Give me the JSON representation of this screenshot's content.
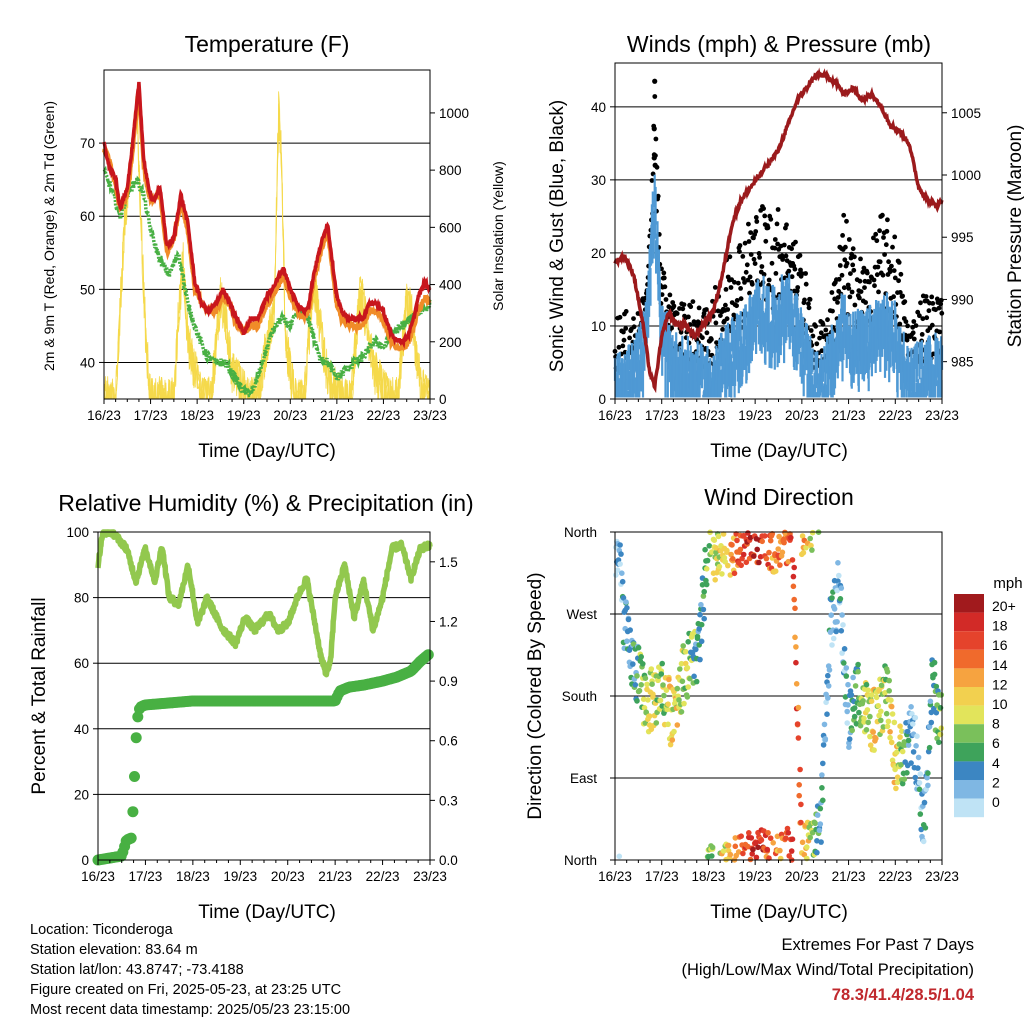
{
  "panels": {
    "temperature": {
      "title": "Temperature (F)",
      "ylabel": "2m & 9m T (Red, Orange) & 2m Td (Green)",
      "y2label": "Solar Insolation (Yellow)",
      "xlabel": "Time (Day/UTC)"
    },
    "winds": {
      "title": "Winds (mph) & Pressure (mb)",
      "ylabel": "Sonic Wind & Gust (Blue, Black)",
      "y2label": "Station Pressure (Maroon)",
      "xlabel": "Time (Day/UTC)"
    },
    "humidity": {
      "title": "Relative Humidity (%) & Precipitation (in)",
      "ylabel": "Percent & Total Rainfall",
      "xlabel": "Time (Day/UTC)"
    },
    "direction": {
      "title": "Wind Direction",
      "ylabel": "Direction (Colored By Speed)",
      "xlabel": "Time (Day/UTC)",
      "legend_title": "mph",
      "legend_labels": [
        "20+",
        "18",
        "16",
        "14",
        "12",
        "10",
        "8",
        "6",
        "4",
        "2",
        "0"
      ],
      "legend_colors": [
        "#a11a1d",
        "#d22a27",
        "#e5432c",
        "#f06a2c",
        "#f6a340",
        "#f2d04f",
        "#e2e45b",
        "#7ac05b",
        "#3ea35b",
        "#3c86c2",
        "#7fb7e3",
        "#bfe3f5"
      ]
    }
  },
  "info": {
    "location": "Location: Ticonderoga",
    "elevation": "Station elevation: 83.64 m",
    "latlon": "Station lat/lon: 43.8747; -73.4188",
    "created": "Figure created on Fri, 2025-05-23, at 23:25 UTC",
    "recent": "Most recent data timestamp: 2025/05/23 23:15:00"
  },
  "extremes": {
    "line1": "Extremes For Past 7 Days",
    "line2": "(High/Low/Max Wind/Total Precipitation)",
    "values": "78.3/41.4/28.5/1.04"
  },
  "colors": {
    "temp2m": "#c8161d",
    "temp9m": "#f08c28",
    "dewpoint": "#48b043",
    "solar": "#f5d94b",
    "wind": "#4f99d4",
    "gust": "#000000",
    "pressure": "#9b1a1c",
    "rh": "#92c84e",
    "precip": "#48b043"
  },
  "chart_data": [
    {
      "type": "line",
      "title": "Temperature (F)",
      "x_ticks": [
        "16/23",
        "17/23",
        "18/23",
        "19/23",
        "20/23",
        "21/23",
        "22/23",
        "23/23"
      ],
      "ylim": [
        35,
        80
      ],
      "y_ticks": [
        40,
        50,
        60,
        70
      ],
      "y2lim": [
        0,
        1150
      ],
      "y2_ticks": [
        0,
        200,
        400,
        600,
        800,
        1000
      ],
      "x_range": [
        0,
        7
      ],
      "series": [
        {
          "name": "2m T (Red)",
          "x": [
            0,
            0.1,
            0.25,
            0.35,
            0.5,
            0.6,
            0.75,
            0.85,
            0.95,
            1.05,
            1.2,
            1.35,
            1.5,
            1.65,
            1.8,
            1.95,
            2.1,
            2.25,
            2.4,
            2.55,
            2.7,
            2.85,
            3.0,
            3.15,
            3.3,
            3.5,
            3.7,
            3.85,
            4.0,
            4.15,
            4.3,
            4.4,
            4.5,
            4.65,
            4.8,
            4.9,
            5.0,
            5.1,
            5.25,
            5.4,
            5.55,
            5.7,
            5.85,
            6.0,
            6.15,
            6.3,
            6.45,
            6.55,
            6.65,
            6.75,
            6.9,
            7.0
          ],
          "values": [
            70,
            67,
            65,
            61,
            64,
            69,
            78.3,
            68,
            64,
            62,
            64,
            56,
            57,
            63,
            59,
            51,
            48,
            47,
            48,
            50,
            48,
            46,
            44,
            46,
            46,
            49,
            51,
            53,
            50,
            48,
            47,
            48,
            52,
            56,
            59,
            54,
            49,
            47,
            46,
            46,
            46,
            48,
            48,
            47,
            44,
            43,
            43,
            44,
            46,
            49,
            51,
            50
          ]
        },
        {
          "name": "9m T (Orange)",
          "x": [
            0,
            0.1,
            0.25,
            0.35,
            0.5,
            0.6,
            0.75,
            0.85,
            0.95,
            1.05,
            1.2,
            1.35,
            1.5,
            1.65,
            1.8,
            1.95,
            2.1,
            2.25,
            2.4,
            2.55,
            2.7,
            2.85,
            3.0,
            3.15,
            3.3,
            3.5,
            3.7,
            3.85,
            4.0,
            4.15,
            4.3,
            4.4,
            4.5,
            4.65,
            4.8,
            4.9,
            5.0,
            5.1,
            5.25,
            5.4,
            5.55,
            5.7,
            5.85,
            6.0,
            6.15,
            6.3,
            6.45,
            6.55,
            6.65,
            6.75,
            6.9,
            7.0
          ],
          "values": [
            69,
            68,
            64,
            61,
            63,
            68,
            77,
            67,
            63,
            62,
            63,
            55,
            57,
            62,
            58,
            50,
            48,
            47,
            47,
            49,
            48,
            45,
            44,
            45,
            45,
            48,
            50,
            52,
            49,
            47,
            46,
            47,
            51,
            55,
            58,
            53,
            48,
            46,
            45,
            45,
            45,
            47,
            47,
            46,
            43,
            42,
            42,
            43,
            45,
            47,
            49,
            48
          ]
        },
        {
          "name": "2m Td (Green)",
          "x": [
            0,
            0.15,
            0.35,
            0.5,
            0.7,
            0.85,
            1.0,
            1.2,
            1.4,
            1.6,
            1.8,
            2.0,
            2.2,
            2.4,
            2.6,
            2.8,
            3.0,
            3.2,
            3.4,
            3.6,
            3.8,
            4.0,
            4.2,
            4.4,
            4.6,
            4.8,
            5.0,
            5.2,
            5.4,
            5.6,
            5.8,
            6.0,
            6.2,
            6.4,
            6.6,
            6.8,
            7.0
          ],
          "values": [
            66,
            64,
            60,
            63,
            65,
            63,
            58,
            54,
            52,
            55,
            48,
            44,
            41,
            40,
            40,
            38,
            36,
            36,
            40,
            44,
            46,
            45,
            47,
            46,
            41,
            40,
            38,
            39,
            40,
            41,
            43,
            42,
            44,
            45,
            46,
            47,
            48
          ]
        },
        {
          "name": "Solar Insolation (Yellow)",
          "x": [
            0,
            0.25,
            0.3,
            0.45,
            0.5,
            0.55,
            0.6,
            0.7,
            0.8,
            0.9,
            1.0,
            1.05,
            1.1,
            1.15,
            1.25,
            1.5,
            1.6,
            1.7,
            1.8,
            2.1,
            2.3,
            2.5,
            2.6,
            2.75,
            3.1,
            3.3,
            3.5,
            3.65,
            3.75,
            3.8,
            3.9,
            4.1,
            4.3,
            4.5,
            4.6,
            4.8,
            5.1,
            5.3,
            5.5,
            5.6,
            5.8,
            6.1,
            6.3,
            6.5,
            6.6,
            6.8,
            7.0
          ],
          "values": [
            0,
            0,
            150,
            650,
            700,
            800,
            850,
            1050,
            600,
            200,
            0,
            0,
            0,
            0,
            0,
            0,
            300,
            480,
            200,
            0,
            0,
            350,
            300,
            100,
            0,
            0,
            200,
            300,
            1000,
            900,
            200,
            0,
            0,
            420,
            300,
            80,
            0,
            0,
            380,
            300,
            100,
            0,
            0,
            340,
            300,
            40,
            0
          ]
        }
      ]
    },
    {
      "type": "scatter",
      "title": "Winds (mph) & Pressure (mb)",
      "x_ticks": [
        "16/23",
        "17/23",
        "18/23",
        "19/23",
        "20/23",
        "21/23",
        "22/23",
        "23/23"
      ],
      "ylim": [
        0,
        46
      ],
      "y_ticks": [
        0,
        10,
        20,
        30,
        40
      ],
      "y2lim": [
        982,
        1009
      ],
      "y2_ticks": [
        985,
        990,
        995,
        1000,
        1005
      ],
      "x_range": [
        0,
        7
      ],
      "series": [
        {
          "name": "Station Pressure (Maroon)",
          "x": [
            0,
            0.2,
            0.4,
            0.6,
            0.75,
            0.85,
            1.0,
            1.15,
            1.3,
            1.5,
            1.7,
            1.9,
            2.1,
            2.3,
            2.5,
            2.7,
            2.9,
            3.1,
            3.3,
            3.5,
            3.7,
            3.9,
            4.1,
            4.3,
            4.5,
            4.7,
            4.9,
            5.1,
            5.3,
            5.5,
            5.7,
            5.9,
            6.1,
            6.3,
            6.5,
            6.7,
            6.9,
            7.0
          ],
          "values": [
            993,
            993.5,
            992,
            988,
            984,
            983,
            987,
            989,
            988,
            988,
            987,
            988,
            989,
            992,
            996,
            998,
            999,
            1000,
            1001,
            1002,
            1004,
            1006,
            1007,
            1008,
            1008,
            1007.5,
            1006.5,
            1007,
            1006,
            1006.5,
            1005.5,
            1004,
            1003.5,
            1002.5,
            999,
            998,
            997.5,
            998
          ]
        },
        {
          "name": "Gust (Black)",
          "x": [
            0.5,
            0.6,
            0.7,
            0.85,
            1.0,
            1.3,
            1.6,
            1.9,
            2.2,
            2.5,
            2.8,
            3.1,
            3.4,
            3.7,
            4.0,
            4.3,
            4.6,
            4.9,
            5.1,
            5.4,
            5.7,
            6.0,
            6.3,
            6.6,
            6.9
          ],
          "values": [
            12,
            14,
            15,
            43.5,
            18,
            13,
            14,
            12,
            16,
            22,
            26,
            27,
            27,
            25,
            20,
            10,
            13,
            26,
            21,
            19,
            26,
            23,
            10,
            15,
            14
          ]
        },
        {
          "name": "Sonic Wind (Blue)",
          "x": [
            0,
            0.2,
            0.4,
            0.6,
            0.85,
            1.0,
            1.3,
            1.6,
            1.9,
            2.2,
            2.5,
            2.8,
            3.1,
            3.4,
            3.7,
            4.0,
            4.3,
            4.6,
            4.9,
            5.1,
            5.4,
            5.7,
            6.0,
            6.3,
            6.6,
            6.9
          ],
          "values": [
            4,
            3,
            5,
            8,
            28.5,
            10,
            6,
            5,
            4,
            5,
            8,
            10,
            14,
            12,
            15,
            9,
            3,
            6,
            12,
            9,
            9,
            12,
            10,
            4,
            5,
            6
          ]
        }
      ]
    },
    {
      "type": "line",
      "title": "Relative Humidity (%) & Precipitation (in)",
      "x_ticks": [
        "16/23",
        "17/23",
        "18/23",
        "19/23",
        "20/23",
        "21/23",
        "22/23",
        "23/23"
      ],
      "ylim": [
        0,
        100
      ],
      "y_ticks": [
        0,
        20,
        40,
        60,
        80,
        100
      ],
      "y2lim": [
        0,
        1.65
      ],
      "y2_ticks": [
        0.0,
        0.3,
        0.6,
        0.9,
        1.2,
        1.5
      ],
      "x_range": [
        0,
        7
      ],
      "series": [
        {
          "name": "Relative Humidity",
          "x": [
            0,
            0.1,
            0.3,
            0.6,
            0.8,
            1.0,
            1.2,
            1.35,
            1.5,
            1.7,
            1.9,
            2.1,
            2.3,
            2.6,
            2.9,
            3.1,
            3.3,
            3.6,
            3.8,
            4.0,
            4.2,
            4.4,
            4.6,
            4.7,
            4.8,
            4.9,
            5.0,
            5.2,
            5.4,
            5.6,
            5.8,
            6.0,
            6.2,
            6.4,
            6.6,
            6.8,
            7.0
          ],
          "values": [
            90,
            100,
            100,
            95,
            85,
            95,
            85,
            96,
            80,
            78,
            90,
            72,
            80,
            71,
            66,
            74,
            70,
            75,
            70,
            72,
            80,
            86,
            70,
            62,
            57,
            60,
            80,
            90,
            74,
            85,
            70,
            80,
            95,
            96,
            86,
            95,
            96
          ]
        },
        {
          "name": "Total Rainfall (in)",
          "x": [
            0,
            0.5,
            0.6,
            0.7,
            0.75,
            0.8,
            0.85,
            0.9,
            1.0,
            1.5,
            2.0,
            3.0,
            4.0,
            5.0,
            5.1,
            5.3,
            5.6,
            6.0,
            6.3,
            6.6,
            6.8,
            7.0
          ],
          "values": [
            0.0,
            0.02,
            0.1,
            0.11,
            0.3,
            0.6,
            0.75,
            0.77,
            0.78,
            0.79,
            0.8,
            0.8,
            0.8,
            0.8,
            0.85,
            0.87,
            0.88,
            0.9,
            0.92,
            0.95,
            1.0,
            1.04
          ]
        }
      ]
    },
    {
      "type": "scatter",
      "title": "Wind Direction",
      "x_ticks": [
        "16/23",
        "17/23",
        "18/23",
        "19/23",
        "20/23",
        "21/23",
        "22/23",
        "23/23"
      ],
      "y_ticks": [
        "North",
        "East",
        "South",
        "West",
        "North"
      ],
      "ylim": [
        0,
        360
      ],
      "x_range": [
        0,
        7
      ],
      "series": [
        {
          "name": "Direction",
          "x": [
            0.1,
            0.2,
            0.3,
            0.5,
            0.7,
            1.0,
            1.2,
            1.5,
            1.8,
            2.0,
            2.2,
            2.4,
            2.6,
            2.8,
            3.0,
            3.2,
            3.4,
            3.6,
            3.8,
            4.0,
            4.2,
            4.4,
            4.6,
            4.8,
            5.0,
            5.2,
            5.4,
            5.6,
            5.8,
            6.0,
            6.2,
            6.4,
            6.6,
            6.8,
            6.9
          ],
          "values": [
            330,
            260,
            230,
            200,
            170,
            190,
            160,
            210,
            230,
            350,
            330,
            345,
            350,
            355,
            360,
            358,
            350,
            360,
            360,
            5,
            10,
            40,
            250,
            300,
            150,
            190,
            160,
            150,
            190,
            110,
            120,
            140,
            30,
            200,
            160
          ]
        },
        {
          "name": "Speed (mph)",
          "x": [
            0.1,
            0.2,
            0.3,
            0.5,
            0.7,
            1.0,
            1.2,
            1.5,
            1.8,
            2.0,
            2.2,
            2.4,
            2.6,
            2.8,
            3.0,
            3.2,
            3.4,
            3.6,
            3.8,
            4.0,
            4.2,
            4.4,
            4.6,
            4.8,
            5.0,
            5.2,
            5.4,
            5.6,
            5.8,
            6.0,
            6.2,
            6.4,
            6.6,
            6.8,
            6.9
          ],
          "values": [
            2,
            4,
            3,
            6,
            10,
            8,
            12,
            9,
            5,
            8,
            10,
            12,
            16,
            18,
            20,
            18,
            14,
            16,
            18,
            15,
            10,
            4,
            3,
            2,
            3,
            7,
            10,
            12,
            8,
            13,
            5,
            2,
            3,
            4,
            7
          ]
        }
      ]
    }
  ]
}
